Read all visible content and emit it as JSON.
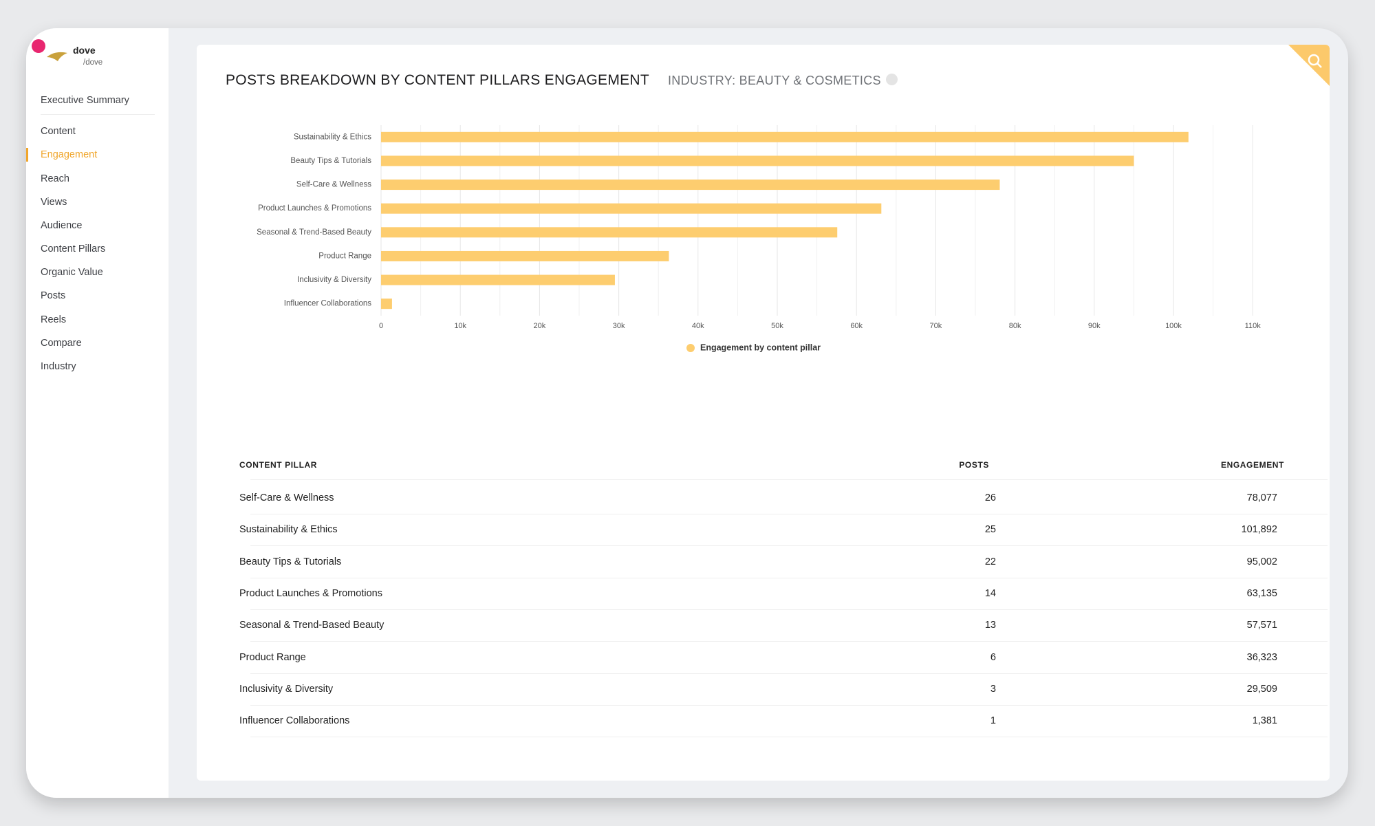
{
  "sidebar": {
    "account_name": "dove",
    "account_handle": "/dove",
    "nav": [
      "Executive Summary",
      "Content",
      "Engagement",
      "Reach",
      "Views",
      "Audience",
      "Content Pillars",
      "Organic Value",
      "Posts",
      "Reels",
      "Compare",
      "Industry"
    ],
    "active": "Engagement"
  },
  "header": {
    "title": "POSTS BREAKDOWN BY CONTENT PILLARS ENGAGEMENT",
    "subtitle": "INDUSTRY: BEAUTY & COSMETICS"
  },
  "chart_data": {
    "type": "bar",
    "orientation": "horizontal",
    "categories": [
      "Sustainability & Ethics",
      "Beauty Tips & Tutorials",
      "Self-Care & Wellness",
      "Product Launches & Promotions",
      "Seasonal & Trend-Based Beauty",
      "Product Range",
      "Inclusivity & Diversity",
      "Influencer Collaborations"
    ],
    "series": [
      {
        "name": "Engagement by content pillar",
        "color": "#fdcd6f",
        "values": [
          101892,
          95002,
          78077,
          63135,
          57571,
          36323,
          29509,
          1381
        ]
      }
    ],
    "xlim": [
      0,
      110000
    ],
    "xticks": [
      0,
      {
        "value": 10000,
        "label": "10k"
      },
      {
        "value": 20000,
        "label": "20k"
      },
      {
        "value": 30000,
        "label": "30k"
      },
      {
        "value": 40000,
        "label": "40k"
      },
      {
        "value": 50000,
        "label": "50k"
      },
      {
        "value": 60000,
        "label": "60k"
      },
      {
        "value": 70000,
        "label": "70k"
      },
      {
        "value": 80000,
        "label": "80k"
      },
      {
        "value": 90000,
        "label": "90k"
      },
      {
        "value": 100000,
        "label": "100k"
      },
      {
        "value": 110000,
        "label": "110k"
      }
    ],
    "xminor_ticks": [
      5000,
      15000,
      25000,
      35000,
      45000,
      55000,
      65000,
      75000,
      85000,
      95000,
      105000
    ],
    "grid": true,
    "legend": "bottom"
  },
  "table": {
    "columns": [
      "CONTENT PILLAR",
      "POSTS",
      "ENGAGEMENT"
    ],
    "rows": [
      [
        "Self-Care & Wellness",
        "26",
        "78,077"
      ],
      [
        "Sustainability & Ethics",
        "25",
        "101,892"
      ],
      [
        "Beauty Tips & Tutorials",
        "22",
        "95,002"
      ],
      [
        "Product Launches & Promotions",
        "14",
        "63,135"
      ],
      [
        "Seasonal & Trend-Based Beauty",
        "13",
        "57,571"
      ],
      [
        "Product Range",
        "6",
        "36,323"
      ],
      [
        "Inclusivity & Diversity",
        "3",
        "29,509"
      ],
      [
        "Influencer Collaborations",
        "1",
        "1,381"
      ]
    ]
  }
}
